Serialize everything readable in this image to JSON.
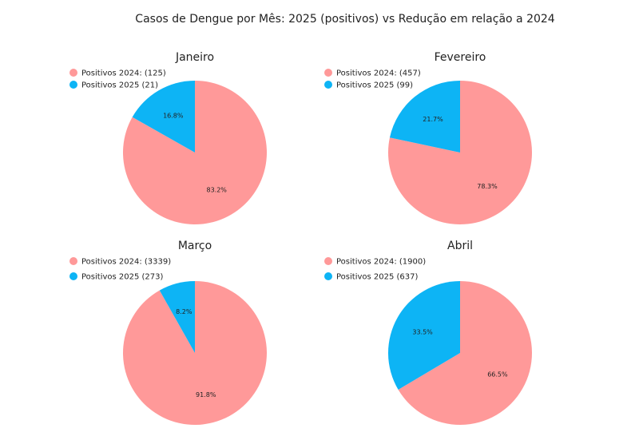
{
  "figure_title": "Casos de Dengue por Mês: 2025 (positivos) vs Redução em relação a 2024",
  "colors": {
    "positivos_2024": "#ff9999",
    "positivos_2025": "#0db4f5"
  },
  "chart_data": [
    {
      "type": "pie",
      "title": "Janeiro",
      "legend": [
        "Positivos 2024: (125)",
        "Positivos 2025 (21)"
      ],
      "values": [
        104,
        21
      ],
      "slice_labels": [
        "83.2%",
        "16.8%"
      ]
    },
    {
      "type": "pie",
      "title": "Fevereiro",
      "legend": [
        "Positivos 2024: (457)",
        "Positivos 2025 (99)"
      ],
      "values": [
        358,
        99
      ],
      "slice_labels": [
        "78.3%",
        "21.7%"
      ]
    },
    {
      "type": "pie",
      "title": "Março",
      "legend": [
        "Positivos 2024: (3339)",
        "Positivos 2025 (273)"
      ],
      "values": [
        3066,
        273
      ],
      "slice_labels": [
        "91.8%",
        "8.2%"
      ]
    },
    {
      "type": "pie",
      "title": "Abril",
      "legend": [
        "Positivos 2024: (1900)",
        "Positivos 2025 (637)"
      ],
      "values": [
        1263,
        637
      ],
      "slice_labels": [
        "66.5%",
        "33.5%"
      ]
    }
  ]
}
